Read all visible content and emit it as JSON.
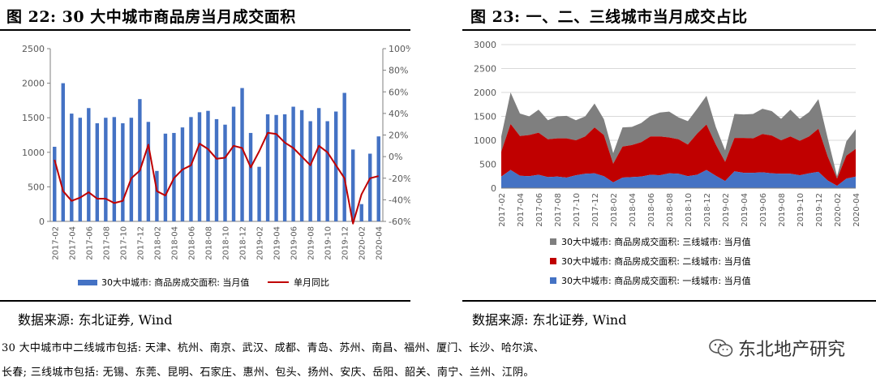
{
  "left_figure": {
    "title": "图 22:  30 大中城市商品房当月成交面积",
    "source": "数据来源:  东北证券,  Wind"
  },
  "right_figure": {
    "title": "图 23:  一、二、三线城市当月成交占比",
    "source": "数据来源:  东北证券,  Wind"
  },
  "footnote": {
    "line1": "30 大中城市中二线城市包括:  天津、杭州、南京、武汉、成都、青岛、苏州、南昌、福州、厦门、长沙、哈尔滨、",
    "line2": "长春;  三线城市包括:  无锡、东莞、昆明、石家庄、惠州、包头、扬州、安庆、岳阳、韶关、南宁、兰州、江阴。"
  },
  "watermark": {
    "text": "东北地产研究",
    "icon": "wechat-icon"
  },
  "colors": {
    "bar": "#4472c4",
    "line": "#c00000",
    "tier1": "#4472c4",
    "tier2": "#c00000",
    "tier3": "#7f7f7f"
  },
  "chart_data": [
    {
      "type": "bar",
      "categories": [
        "2017-02",
        "2017-03",
        "2017-04",
        "2017-05",
        "2017-06",
        "2017-07",
        "2017-08",
        "2017-09",
        "2017-10",
        "2017-11",
        "2017-12",
        "2018-01",
        "2018-02",
        "2018-03",
        "2018-04",
        "2018-05",
        "2018-06",
        "2018-07",
        "2018-08",
        "2018-09",
        "2018-10",
        "2018-11",
        "2018-12",
        "2019-01",
        "2019-02",
        "2019-03",
        "2019-04",
        "2019-05",
        "2019-06",
        "2019-07",
        "2019-08",
        "2019-09",
        "2019-10",
        "2019-11",
        "2019-12",
        "2020-01",
        "2020-02",
        "2020-03",
        "2020-04"
      ],
      "x_tick_labels": [
        "2017-02",
        "2017-04",
        "2017-06",
        "2017-08",
        "2017-10",
        "2017-12",
        "2018-02",
        "2018-04",
        "2018-06",
        "2018-08",
        "2018-10",
        "2018-12",
        "2019-02",
        "2019-04",
        "2019-06",
        "2019-08",
        "2019-10",
        "2019-12",
        "2020-02",
        "2020-04"
      ],
      "series": [
        {
          "name": "30大中城市: 商品房成交面积: 当月值",
          "kind": "bar",
          "axis": "left",
          "values": [
            1080,
            2000,
            1560,
            1500,
            1640,
            1420,
            1500,
            1510,
            1420,
            1500,
            1770,
            1440,
            730,
            1270,
            1280,
            1360,
            1510,
            1580,
            1600,
            1480,
            1400,
            1660,
            1930,
            1280,
            790,
            1550,
            1540,
            1550,
            1660,
            1610,
            1450,
            1640,
            1450,
            1590,
            1860,
            1040,
            250,
            980,
            1230
          ]
        },
        {
          "name": "单月同比",
          "kind": "line",
          "axis": "right",
          "values": [
            -3,
            -32,
            -41,
            -38,
            -33,
            -39,
            -39,
            -43,
            -41,
            -20,
            -13,
            11,
            -32,
            -36,
            -20,
            -12,
            -8,
            12,
            7,
            -2,
            -1,
            10,
            8,
            -10,
            5,
            22,
            21,
            13,
            8,
            0,
            -8,
            10,
            4,
            -8,
            -20,
            -62,
            -35,
            -20,
            -18
          ]
        }
      ],
      "y_left": {
        "ticks": [
          "0",
          "500",
          "1000",
          "1500",
          "2000",
          "2500"
        ],
        "ylim": [
          0,
          2500
        ]
      },
      "y_right": {
        "ticks": [
          "-60%",
          "-40%",
          "-20%",
          "0%",
          "20%",
          "40%",
          "60%",
          "80%",
          "100%"
        ],
        "ylim": [
          -60,
          100
        ]
      },
      "grid": false,
      "legend": "bottom"
    },
    {
      "type": "area",
      "stacked": true,
      "categories": [
        "2017-02",
        "2017-03",
        "2017-04",
        "2017-05",
        "2017-06",
        "2017-07",
        "2017-08",
        "2017-09",
        "2017-10",
        "2017-11",
        "2017-12",
        "2018-01",
        "2018-02",
        "2018-03",
        "2018-04",
        "2018-05",
        "2018-06",
        "2018-07",
        "2018-08",
        "2018-09",
        "2018-10",
        "2018-11",
        "2018-12",
        "2019-01",
        "2019-02",
        "2019-03",
        "2019-04",
        "2019-05",
        "2019-06",
        "2019-07",
        "2019-08",
        "2019-09",
        "2019-10",
        "2019-11",
        "2019-12",
        "2020-01",
        "2020-02",
        "2020-03",
        "2020-04"
      ],
      "x_tick_labels": [
        "2017-02",
        "2017-04",
        "2017-06",
        "2017-08",
        "2017-10",
        "2017-12",
        "2018-02",
        "2018-04",
        "2018-06",
        "2018-08",
        "2018-10",
        "2018-12",
        "2019-02",
        "2019-04",
        "2019-06",
        "2019-08",
        "2019-10",
        "2019-12",
        "2020-02",
        "2020-04"
      ],
      "series": [
        {
          "name": "30大中城市: 商品房成交面积: 一线城市: 当月值",
          "values": [
            240,
            380,
            260,
            250,
            280,
            230,
            240,
            220,
            270,
            300,
            310,
            250,
            120,
            220,
            230,
            240,
            280,
            270,
            310,
            300,
            250,
            280,
            380,
            260,
            150,
            350,
            320,
            320,
            330,
            310,
            300,
            300,
            270,
            310,
            340,
            160,
            50,
            200,
            240
          ]
        },
        {
          "name": "30大中城市: 商品房成交面积: 二线城市: 当月值",
          "values": [
            520,
            960,
            830,
            860,
            880,
            790,
            800,
            820,
            730,
            780,
            960,
            860,
            390,
            650,
            670,
            720,
            800,
            810,
            750,
            720,
            660,
            860,
            950,
            650,
            400,
            700,
            730,
            720,
            800,
            790,
            700,
            780,
            720,
            770,
            900,
            500,
            150,
            480,
            580
          ]
        },
        {
          "name": "30大中城市: 商品房成交面积: 三线城市: 当月值",
          "values": [
            320,
            660,
            470,
            390,
            480,
            400,
            460,
            470,
            420,
            420,
            500,
            330,
            220,
            400,
            380,
            400,
            430,
            500,
            540,
            460,
            490,
            520,
            600,
            370,
            240,
            500,
            490,
            510,
            530,
            510,
            450,
            560,
            460,
            510,
            620,
            380,
            50,
            300,
            410
          ]
        }
      ],
      "y_left": {
        "ticks": [
          "0",
          "500",
          "1000",
          "1500",
          "2000",
          "2500",
          "3000"
        ],
        "ylim": [
          0,
          3000
        ]
      },
      "grid": true,
      "legend": "bottom"
    }
  ]
}
